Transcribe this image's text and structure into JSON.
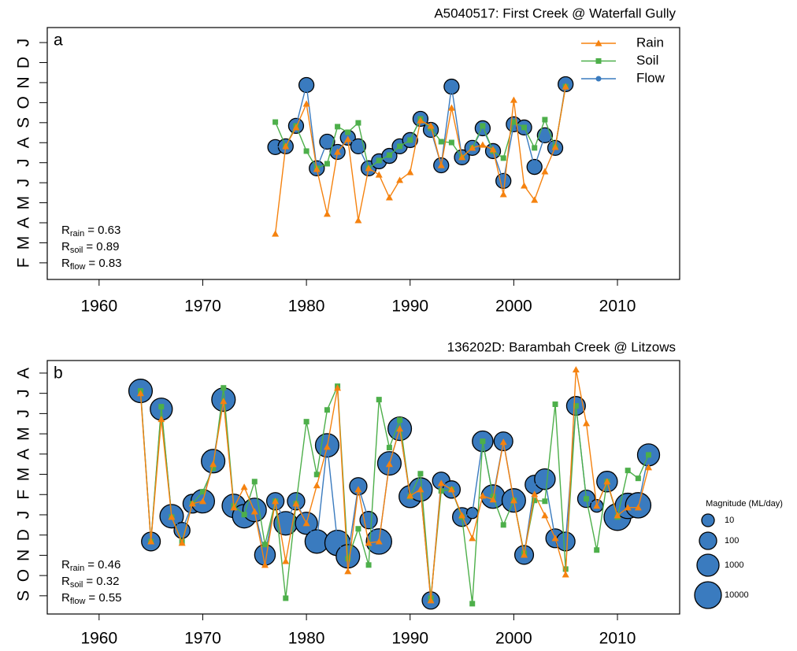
{
  "chart_data": [
    {
      "type": "line",
      "title": "A5040517: First Creek @ Waterfall Gully",
      "label": "a",
      "x": [
        1977,
        1978,
        1979,
        1980,
        1981,
        1982,
        1983,
        1984,
        1985,
        1986,
        1987,
        1988,
        1989,
        1990,
        1991,
        1992,
        1993,
        1994,
        1995,
        1996,
        1997,
        1998,
        1999,
        2000,
        2001,
        2002,
        2003,
        2004,
        2005
      ],
      "series": [
        {
          "name": "Rain",
          "color": "#f5820f",
          "marker": "triangle",
          "values": [
            3.45,
            7.82,
            8.76,
            9.94,
            6.68,
            4.44,
            7.54,
            8.17,
            4.12,
            6.72,
            6.4,
            5.26,
            6.13,
            6.52,
            9.11,
            8.84,
            6.87,
            9.74,
            7.27,
            7.74,
            7.89,
            7.66,
            5.42,
            10.13,
            5.85,
            5.14,
            6.56,
            7.78,
            10.8
          ]
        },
        {
          "name": "Soil",
          "color": "#4daf4a",
          "marker": "square",
          "values": [
            9.03,
            7.82,
            8.84,
            7.58,
            6.72,
            6.95,
            8.8,
            8.52,
            8.99,
            6.72,
            7.11,
            7.38,
            7.82,
            8.13,
            9.19,
            8.72,
            8.05,
            8.01,
            7.27,
            7.74,
            8.84,
            7.58,
            7.23,
            9.03,
            8.76,
            7.74,
            9.15,
            7.78,
            10.8
          ]
        },
        {
          "name": "Flow",
          "color": "#3a7bbf",
          "marker": "circle",
          "values": [
            7.78,
            7.82,
            8.84,
            10.88,
            6.72,
            8.05,
            7.54,
            8.25,
            7.82,
            6.72,
            7.07,
            7.34,
            7.82,
            8.13,
            9.19,
            8.64,
            6.87,
            10.8,
            7.27,
            7.74,
            8.72,
            7.58,
            6.09,
            8.92,
            8.76,
            6.79,
            8.37,
            7.74,
            10.92
          ]
        }
      ],
      "xlim": [
        1955,
        2016
      ],
      "xticks": [
        1960,
        1970,
        1980,
        1990,
        2000,
        2010
      ],
      "ylim": [
        1.17,
        13.75
      ],
      "yticks": [
        {
          "value": 2,
          "label": "F"
        },
        {
          "value": 3,
          "label": "M"
        },
        {
          "value": 4,
          "label": "A"
        },
        {
          "value": 5,
          "label": "M"
        },
        {
          "value": 6,
          "label": "J"
        },
        {
          "value": 7,
          "label": "J"
        },
        {
          "value": 8,
          "label": "A"
        },
        {
          "value": 9,
          "label": "S"
        },
        {
          "value": 10,
          "label": "O"
        },
        {
          "value": 11,
          "label": "N"
        },
        {
          "value": 12,
          "label": "D"
        },
        {
          "value": 13,
          "label": "J"
        }
      ],
      "legend": "top-right",
      "stats": [
        {
          "base": "R",
          "sub": "rain",
          "text": "= 0.63"
        },
        {
          "base": "R",
          "sub": "soil",
          "text": "= 0.89"
        },
        {
          "base": "R",
          "sub": "flow",
          "text": "= 0.83"
        }
      ]
    },
    {
      "type": "line",
      "title": "136202D: Barambah Creek @ Litzows",
      "label": "b",
      "x": [
        1964,
        1965,
        1966,
        1967,
        1968,
        1969,
        1970,
        1971,
        1972,
        1973,
        1974,
        1975,
        1976,
        1977,
        1978,
        1979,
        1980,
        1981,
        1982,
        1983,
        1984,
        1985,
        1986,
        1987,
        1988,
        1989,
        1990,
        1991,
        1992,
        1993,
        1994,
        1995,
        1996,
        1997,
        1998,
        1999,
        2000,
        2001,
        2002,
        2003,
        2004,
        2005,
        2006,
        2007,
        2008,
        2009,
        2010,
        2011,
        2012,
        2013
      ],
      "series": [
        {
          "name": "Rain",
          "color": "#f5820f",
          "marker": "triangle",
          "values": [
            19.0,
            11.68,
            17.72,
            12.89,
            11.61,
            13.55,
            13.67,
            15.5,
            18.61,
            13.36,
            14.37,
            13.16,
            10.52,
            13.67,
            10.71,
            13.55,
            12.58,
            14.45,
            16.35,
            19.27,
            10.21,
            14.25,
            11.61,
            11.68,
            15.5,
            17.25,
            13.94,
            14.25,
            8.77,
            14.56,
            14.25,
            12.97,
            11.84,
            13.94,
            13.75,
            16.59,
            13.71,
            11.02,
            14.02,
            12.97,
            11.84,
            10.05,
            20.17,
            17.52,
            13.44,
            14.64,
            12.97,
            13.36,
            13.36,
            15.34
          ]
        },
        {
          "name": "Soil",
          "color": "#4daf4a",
          "marker": "square",
          "values": [
            19.12,
            11.68,
            18.34,
            12.89,
            11.68,
            13.55,
            14.14,
            15.3,
            19.27,
            13.44,
            13.01,
            14.64,
            11.53,
            13.67,
            8.88,
            13.55,
            17.6,
            14.99,
            18.18,
            19.35,
            10.83,
            12.31,
            10.52,
            18.69,
            16.32,
            17.68,
            13.9,
            15.03,
            8.88,
            14.18,
            14.25,
            12.89,
            8.61,
            16.63,
            13.9,
            12.5,
            13.71,
            11.1,
            13.71,
            13.67,
            18.46,
            10.32,
            18.38,
            13.79,
            11.26,
            14.64,
            12.89,
            15.19,
            14.8,
            15.96
          ]
        },
        {
          "name": "Flow",
          "color": "#3a7bbf",
          "marker": "circle",
          "values": [
            19.12,
            11.68,
            18.22,
            12.93,
            12.23,
            13.55,
            13.67,
            15.65,
            18.69,
            13.44,
            12.93,
            13.24,
            11.02,
            13.67,
            12.58,
            13.67,
            12.58,
            11.68,
            16.43,
            11.61,
            10.95,
            14.41,
            12.74,
            11.68,
            15.54,
            17.25,
            13.9,
            14.25,
            8.77,
            14.68,
            14.25,
            12.89,
            13.09,
            16.63,
            13.9,
            16.63,
            13.71,
            11.02,
            14.49,
            14.76,
            11.84,
            11.68,
            18.38,
            13.79,
            13.44,
            14.64,
            12.89,
            13.44,
            13.47,
            15.96
          ],
          "sizes": [
            2000,
            200,
            1000,
            2000,
            50,
            200,
            2000,
            2000,
            2000,
            2000,
            2000,
            2000,
            500,
            100,
            2000,
            100,
            1000,
            2000,
            2000,
            5000,
            2000,
            100,
            100,
            5000,
            2000,
            2000,
            1000,
            2000,
            100,
            100,
            100,
            200,
            5,
            500,
            2000,
            200,
            2000,
            200,
            200,
            500,
            200,
            200,
            200,
            100,
            10,
            500,
            10000,
            5000,
            5000,
            1000
          ]
        }
      ],
      "xlim": [
        1955,
        2016
      ],
      "xticks": [
        1960,
        1970,
        1980,
        1990,
        2000,
        2010
      ],
      "ylim": [
        8.1,
        20.62
      ],
      "yticks": [
        {
          "value": 9,
          "label": "S"
        },
        {
          "value": 10,
          "label": "O"
        },
        {
          "value": 11,
          "label": "N"
        },
        {
          "value": 12,
          "label": "D"
        },
        {
          "value": 13,
          "label": "J"
        },
        {
          "value": 14,
          "label": "F"
        },
        {
          "value": 15,
          "label": "M"
        },
        {
          "value": 16,
          "label": "A"
        },
        {
          "value": 17,
          "label": "M"
        },
        {
          "value": 18,
          "label": "J"
        },
        {
          "value": 19,
          "label": "J"
        },
        {
          "value": 20,
          "label": "A"
        }
      ],
      "stats": [
        {
          "base": "R",
          "sub": "rain",
          "text": "= 0.46"
        },
        {
          "base": "R",
          "sub": "soil",
          "text": "= 0.32"
        },
        {
          "base": "R",
          "sub": "flow",
          "text": "= 0.55"
        }
      ],
      "size_legend": {
        "title": "Magnitude (ML/day)",
        "values": [
          10,
          100,
          1000,
          10000
        ]
      }
    }
  ]
}
